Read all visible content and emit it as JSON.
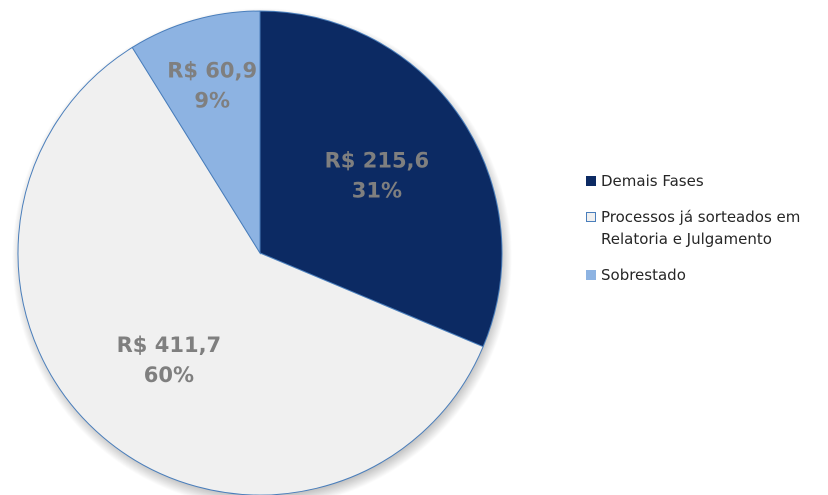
{
  "chart_data": {
    "type": "pie",
    "categories": [
      "Demais Fases",
      "Processos já sorteados em Relatoria e Julgamento",
      "Sobrestado"
    ],
    "values": [
      215.6,
      411.7,
      60.9
    ],
    "value_labels": [
      "R$ 215,6",
      "R$ 411,7",
      "R$ 60,9"
    ],
    "percents": [
      31,
      60,
      9
    ],
    "percent_labels": [
      "31%",
      "60%",
      "9%"
    ],
    "colors": [
      "#0c2a63",
      "#f0f0f0",
      "#8db3e2"
    ],
    "edge_color": "#4a7ebb",
    "legend": "right"
  }
}
